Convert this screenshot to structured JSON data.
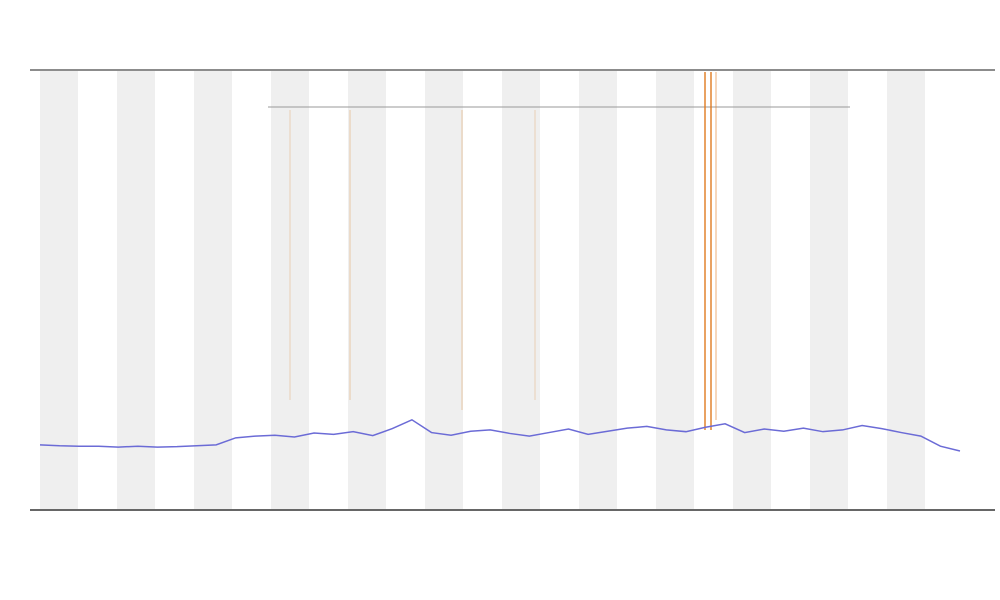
{
  "chart_data": {
    "type": "line",
    "categories": [
      null,
      null,
      null,
      null,
      null,
      null,
      null,
      null,
      null,
      null,
      null,
      null,
      null,
      null,
      null,
      null,
      null,
      null,
      null,
      null,
      null,
      null,
      null,
      null,
      null,
      null,
      null,
      null,
      null,
      null,
      null,
      null,
      null,
      null,
      null,
      null,
      null,
      null,
      null,
      null,
      null,
      null,
      null,
      null,
      null,
      null,
      null,
      null
    ],
    "series": [
      {
        "color": "#6b6bd6",
        "values": [
          14.8,
          14.6,
          14.5,
          14.5,
          14.3,
          14.5,
          14.3,
          14.4,
          14.6,
          14.8,
          16.4,
          16.8,
          17.0,
          16.6,
          17.5,
          17.2,
          17.8,
          16.9,
          18.5,
          20.5,
          17.6,
          17.0,
          17.9,
          18.2,
          17.4,
          16.8,
          17.6,
          18.4,
          17.2,
          17.9,
          18.6,
          19.0,
          18.2,
          17.8,
          18.8,
          19.6,
          17.6,
          18.4,
          17.9,
          18.6,
          17.8,
          18.2,
          19.2,
          18.5,
          17.6,
          16.8,
          14.5,
          13.4
        ]
      }
    ],
    "ylim": [
      0,
      100
    ]
  }
}
